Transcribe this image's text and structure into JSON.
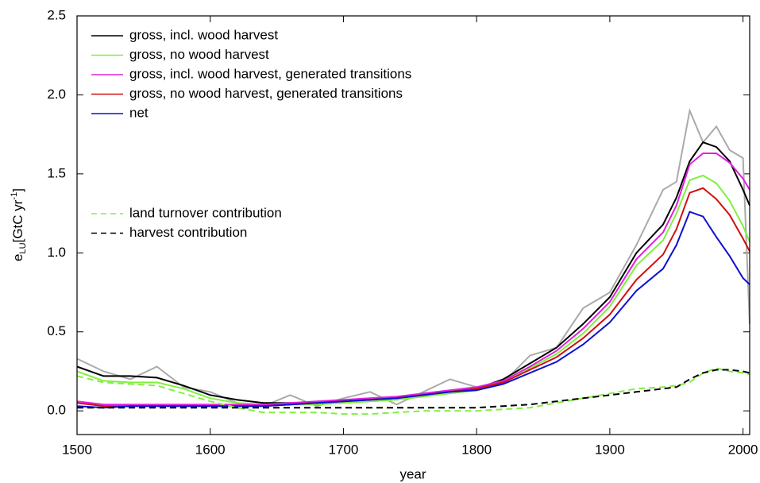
{
  "chart_data": {
    "type": "line",
    "xlabel": "year",
    "ylabel": {
      "base": "e",
      "sub": "LU",
      "unit": "[GtC yr",
      "sup": "-1",
      "close": "]"
    },
    "x": [
      1500,
      1520,
      1540,
      1560,
      1580,
      1600,
      1620,
      1640,
      1660,
      1680,
      1700,
      1720,
      1740,
      1760,
      1780,
      1800,
      1820,
      1840,
      1860,
      1880,
      1900,
      1920,
      1940,
      1950,
      1960,
      1970,
      1980,
      1990,
      2000,
      2005
    ],
    "xlim": [
      1500,
      2005
    ],
    "xticks": [
      1500,
      1600,
      1700,
      1800,
      1900,
      2000
    ],
    "ylim": [
      -0.15,
      2.5
    ],
    "yticks": [
      {
        "value": 0,
        "label": "0.0"
      },
      0.5,
      {
        "value": 1,
        "label": "1.0"
      },
      1.5,
      {
        "value": 2,
        "label": "2.0"
      },
      2.5
    ],
    "series": [
      {
        "color": "#aaaaaa",
        "dash": false,
        "values": [
          0.33,
          0.25,
          0.2,
          0.28,
          0.15,
          0.12,
          0.05,
          0.03,
          0.1,
          0.03,
          0.08,
          0.12,
          0.04,
          0.12,
          0.2,
          0.15,
          0.18,
          0.35,
          0.4,
          0.65,
          0.75,
          1.05,
          1.4,
          1.45,
          1.9,
          1.7,
          1.8,
          1.65,
          1.6,
          0.55
        ]
      },
      {
        "name": "gross, incl. wood harvest",
        "color": "#000000",
        "dash": false,
        "values": [
          0.28,
          0.22,
          0.22,
          0.21,
          0.16,
          0.1,
          0.07,
          0.05,
          0.05,
          0.05,
          0.06,
          0.07,
          0.08,
          0.1,
          0.12,
          0.14,
          0.2,
          0.3,
          0.4,
          0.55,
          0.72,
          1.0,
          1.18,
          1.35,
          1.58,
          1.7,
          1.67,
          1.58,
          1.4,
          1.3
        ]
      },
      {
        "name": "gross, no wood harvest",
        "color": "#80f040",
        "dash": false,
        "values": [
          0.25,
          0.19,
          0.18,
          0.18,
          0.14,
          0.08,
          0.05,
          0.04,
          0.04,
          0.04,
          0.05,
          0.06,
          0.07,
          0.09,
          0.11,
          0.13,
          0.18,
          0.27,
          0.36,
          0.49,
          0.66,
          0.92,
          1.08,
          1.25,
          1.46,
          1.49,
          1.44,
          1.33,
          1.17,
          1.07
        ]
      },
      {
        "name": "gross, incl. wood harvest, generated transitions",
        "color": "#e020e0",
        "dash": false,
        "values": [
          0.06,
          0.04,
          0.04,
          0.04,
          0.04,
          0.04,
          0.04,
          0.04,
          0.05,
          0.06,
          0.07,
          0.08,
          0.09,
          0.11,
          0.13,
          0.15,
          0.19,
          0.28,
          0.38,
          0.52,
          0.69,
          0.96,
          1.13,
          1.3,
          1.56,
          1.63,
          1.63,
          1.57,
          1.47,
          1.4
        ]
      },
      {
        "name": "gross, no wood harvest, generated transitions",
        "color": "#d01010",
        "dash": false,
        "values": [
          0.05,
          0.03,
          0.03,
          0.03,
          0.03,
          0.03,
          0.03,
          0.03,
          0.04,
          0.05,
          0.06,
          0.07,
          0.08,
          0.1,
          0.12,
          0.14,
          0.18,
          0.26,
          0.34,
          0.46,
          0.61,
          0.83,
          0.99,
          1.15,
          1.38,
          1.41,
          1.34,
          1.24,
          1.09,
          1.01
        ]
      },
      {
        "name": "net",
        "color": "#1010d0",
        "dash": false,
        "values": [
          0.03,
          0.02,
          0.03,
          0.03,
          0.03,
          0.03,
          0.03,
          0.03,
          0.04,
          0.05,
          0.06,
          0.07,
          0.08,
          0.1,
          0.12,
          0.13,
          0.17,
          0.24,
          0.31,
          0.42,
          0.56,
          0.76,
          0.9,
          1.05,
          1.26,
          1.23,
          1.1,
          0.98,
          0.84,
          0.8
        ]
      },
      {
        "name": "land turnover contribution",
        "color": "#80f040",
        "dash": true,
        "values": [
          0.22,
          0.18,
          0.17,
          0.16,
          0.11,
          0.06,
          0.02,
          -0.01,
          -0.01,
          -0.01,
          -0.02,
          -0.02,
          -0.01,
          0.0,
          0.0,
          0.0,
          0.01,
          0.02,
          0.05,
          0.08,
          0.11,
          0.14,
          0.15,
          0.16,
          0.18,
          0.24,
          0.27,
          0.25,
          0.24,
          0.23
        ]
      },
      {
        "name": "harvest contribution",
        "color": "#000000",
        "dash": true,
        "values": [
          0.02,
          0.02,
          0.02,
          0.02,
          0.02,
          0.02,
          0.02,
          0.02,
          0.02,
          0.02,
          0.02,
          0.02,
          0.02,
          0.02,
          0.02,
          0.02,
          0.03,
          0.04,
          0.06,
          0.08,
          0.1,
          0.12,
          0.14,
          0.15,
          0.2,
          0.24,
          0.26,
          0.26,
          0.25,
          0.24
        ]
      }
    ]
  }
}
